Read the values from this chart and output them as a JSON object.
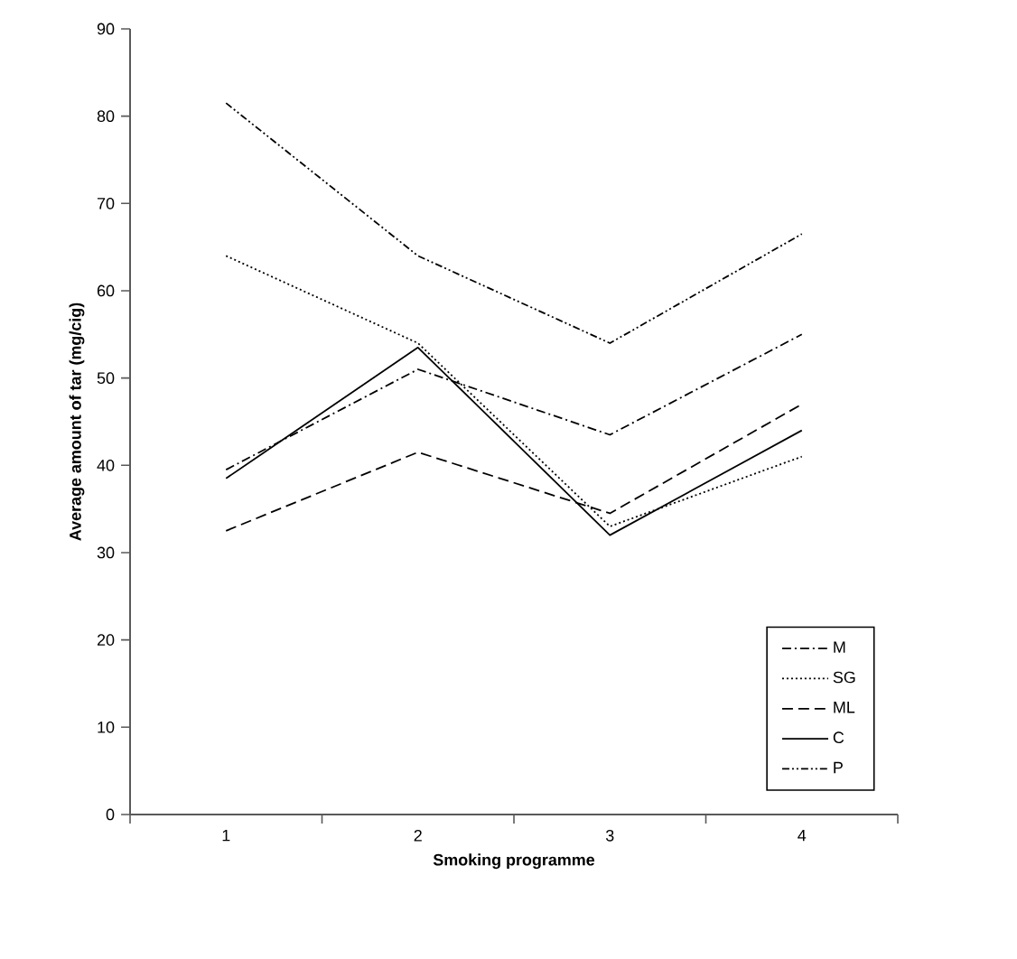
{
  "chart_data": {
    "type": "line",
    "xlabel": "Smoking programme",
    "ylabel": "Average amount of tar (mg/cig)",
    "categories": [
      "1",
      "2",
      "3",
      "4"
    ],
    "series": [
      {
        "name": "M",
        "color": "#000000",
        "line_style": "dashdot",
        "values": [
          39.5,
          51,
          43.5,
          55
        ]
      },
      {
        "name": "SG",
        "color": "#000000",
        "line_style": "dotted",
        "values": [
          64,
          54,
          33,
          41
        ]
      },
      {
        "name": "ML",
        "color": "#000000",
        "line_style": "dashed",
        "values": [
          32.5,
          41.5,
          34.5,
          47
        ]
      },
      {
        "name": "C",
        "color": "#000000",
        "line_style": "solid",
        "values": [
          38.5,
          53.5,
          32,
          44
        ]
      },
      {
        "name": "P",
        "color": "#000000",
        "line_style": "dashdotdot",
        "values": [
          81.5,
          64,
          54,
          66.5
        ]
      }
    ],
    "ylim": [
      0,
      90
    ],
    "yticks": [
      0,
      10,
      20,
      30,
      40,
      50,
      60,
      70,
      80,
      90
    ],
    "legend": "bottom right",
    "grid": false,
    "marker": "none"
  }
}
